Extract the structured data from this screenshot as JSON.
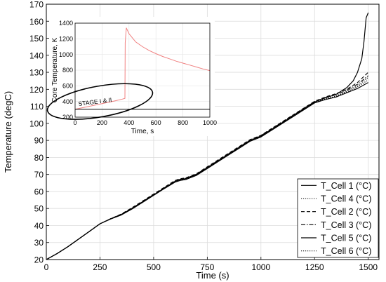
{
  "chart_data": [
    {
      "type": "line",
      "xlabel": "Time (s)",
      "ylabel": "Temperature (degC)",
      "xlim": [
        0,
        1550
      ],
      "ylim": [
        20,
        170
      ],
      "xticks": [
        0,
        250,
        500,
        750,
        1000,
        1250,
        1500
      ],
      "yticks": [
        20,
        30,
        40,
        50,
        60,
        70,
        80,
        90,
        100,
        110,
        120,
        130,
        140,
        150,
        160,
        170
      ],
      "grid": true,
      "legend_position": "bottom-right",
      "series": [
        {
          "name": "T_Cell 1 (°C)",
          "style": "solid",
          "x": [
            0,
            50,
            100,
            150,
            200,
            250,
            300,
            350,
            400,
            450,
            500,
            550,
            600,
            625,
            650,
            700,
            750,
            800,
            850,
            900,
            950,
            1000,
            1050,
            1100,
            1150,
            1200,
            1250,
            1300,
            1350,
            1400,
            1430,
            1450,
            1470,
            1480,
            1490,
            1500
          ],
          "y": [
            20,
            23.5,
            27.5,
            32,
            36.5,
            41,
            44,
            46.5,
            50,
            54,
            58,
            62,
            66,
            67,
            67.5,
            70,
            74,
            78,
            82,
            86,
            90,
            92.5,
            96.5,
            100.5,
            104.5,
            108.5,
            112.5,
            115,
            117,
            121,
            125,
            130,
            138,
            148,
            162,
            165
          ]
        },
        {
          "name": "T_Cell 4 (°C)",
          "style": "dotted",
          "x": [
            0,
            50,
            100,
            150,
            200,
            250,
            300,
            350,
            400,
            450,
            500,
            550,
            600,
            625,
            650,
            700,
            750,
            800,
            850,
            900,
            950,
            1000,
            1050,
            1100,
            1150,
            1200,
            1250,
            1300,
            1350,
            1400,
            1450,
            1500
          ],
          "y": [
            20,
            23.5,
            27.5,
            32,
            36.5,
            41,
            44,
            46.5,
            50,
            54,
            58,
            62,
            66,
            67,
            67.5,
            70,
            74,
            78,
            82,
            86,
            90,
            92.5,
            96.5,
            100.5,
            104.5,
            108.5,
            112.5,
            114.5,
            116,
            119,
            122,
            127
          ]
        },
        {
          "name": "T_Cell 2 (°C)",
          "style": "dashed",
          "x": [
            0,
            50,
            100,
            150,
            200,
            250,
            300,
            350,
            400,
            450,
            500,
            550,
            600,
            625,
            650,
            700,
            750,
            800,
            850,
            900,
            950,
            1000,
            1050,
            1100,
            1150,
            1200,
            1250,
            1300,
            1350,
            1400,
            1450,
            1500
          ],
          "y": [
            20,
            23.5,
            27.5,
            32,
            36.5,
            41,
            44,
            46.8,
            50.5,
            54.5,
            58.5,
            62.5,
            66.5,
            67.5,
            68,
            70.5,
            74.5,
            78.5,
            82.5,
            86.5,
            90.5,
            93,
            97,
            101,
            105,
            109,
            113,
            115.5,
            117.5,
            120,
            124,
            130
          ]
        },
        {
          "name": "T_Cell 3 (°C)",
          "style": "dashdot",
          "x": [
            0,
            50,
            100,
            150,
            200,
            250,
            300,
            350,
            400,
            450,
            500,
            550,
            600,
            625,
            650,
            700,
            750,
            800,
            850,
            900,
            950,
            1000,
            1050,
            1100,
            1150,
            1200,
            1250,
            1300,
            1350,
            1400,
            1450,
            1500
          ],
          "y": [
            20,
            23.5,
            27.5,
            32,
            36.5,
            41,
            44,
            46.6,
            50.2,
            54.2,
            58.2,
            62.2,
            66.2,
            67.2,
            67.8,
            70.2,
            74.2,
            78.2,
            82.2,
            86.2,
            90.2,
            92.8,
            96.8,
            100.8,
            104.8,
            108.8,
            112.8,
            115.2,
            116.8,
            119.5,
            123,
            128
          ]
        },
        {
          "name": "T_Cell 5 (°C)",
          "style": "solid",
          "x": [
            0,
            50,
            100,
            150,
            200,
            250,
            300,
            350,
            400,
            450,
            500,
            550,
            600,
            625,
            650,
            700,
            750,
            800,
            850,
            900,
            950,
            1000,
            1050,
            1100,
            1150,
            1200,
            1250,
            1300,
            1350,
            1400,
            1450,
            1500
          ],
          "y": [
            20,
            23.5,
            27.5,
            32,
            36.5,
            41,
            43.8,
            46.2,
            49.7,
            53.7,
            57.7,
            61.7,
            65.5,
            66.5,
            67,
            69.5,
            73.5,
            77.5,
            81.5,
            85.5,
            89.5,
            92,
            96,
            100,
            104,
            108,
            112,
            114,
            115.5,
            118,
            120.5,
            124
          ]
        },
        {
          "name": "T_Cell 6 (°C)",
          "style": "dotted",
          "x": [
            0,
            50,
            100,
            150,
            200,
            250,
            300,
            350,
            400,
            450,
            500,
            550,
            600,
            625,
            650,
            700,
            750,
            800,
            850,
            900,
            950,
            1000,
            1050,
            1100,
            1150,
            1200,
            1250,
            1300,
            1350,
            1400,
            1450,
            1500
          ],
          "y": [
            20,
            23.5,
            27.5,
            32,
            36.5,
            41,
            43.8,
            46.3,
            49.8,
            53.8,
            57.8,
            61.8,
            65.6,
            66.6,
            67.1,
            69.6,
            73.6,
            77.6,
            81.6,
            85.6,
            89.6,
            92.1,
            96.1,
            100.1,
            104.1,
            108.1,
            112.1,
            114.2,
            115.8,
            118.5,
            121.5,
            125.5
          ]
        }
      ]
    },
    {
      "type": "line",
      "xlabel": "Time, s",
      "ylabel": "Core Temperature, K",
      "xlim": [
        0,
        1000
      ],
      "ylim": [
        200,
        1400
      ],
      "xticks": [
        0,
        200,
        400,
        600,
        800,
        1000
      ],
      "yticks": [
        200,
        400,
        600,
        800,
        1000,
        1200,
        1400
      ],
      "annotation": "STAGE I & II",
      "series": [
        {
          "color": "#f08080",
          "x": [
            0,
            50,
            100,
            150,
            200,
            250,
            300,
            350,
            370,
            372,
            380,
            400,
            450,
            500,
            550,
            600,
            650,
            700,
            750,
            800,
            850,
            900,
            950,
            1000
          ],
          "y": [
            300,
            318,
            336,
            354,
            372,
            390,
            410,
            430,
            440,
            1150,
            1340,
            1265,
            1160,
            1100,
            1050,
            1010,
            975,
            945,
            915,
            890,
            865,
            840,
            815,
            795
          ]
        },
        {
          "color": "#000000",
          "x": [
            0,
            1000
          ],
          "y": [
            300,
            300
          ]
        }
      ]
    }
  ]
}
